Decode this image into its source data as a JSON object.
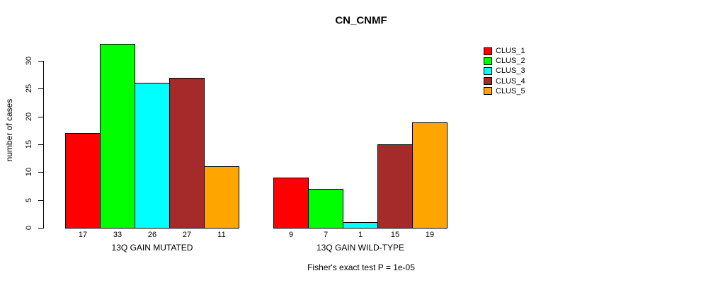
{
  "chart_data": {
    "type": "bar",
    "title": "CN_CNMF",
    "ylabel": "number of cases",
    "xlabel": "",
    "footnote": "Fisher's exact test P = 1e-05",
    "ylim": [
      0,
      33
    ],
    "yticks": [
      0,
      5,
      10,
      15,
      20,
      25,
      30
    ],
    "grid": false,
    "legend_position": "right",
    "categories": [
      "13Q GAIN MUTATED",
      "13Q GAIN WILD-TYPE"
    ],
    "series": [
      {
        "name": "CLUS_1",
        "color": "#FF0000",
        "values": [
          17,
          9
        ]
      },
      {
        "name": "CLUS_2",
        "color": "#00FF00",
        "values": [
          33,
          7
        ]
      },
      {
        "name": "CLUS_3",
        "color": "#00FFFF",
        "values": [
          26,
          1
        ]
      },
      {
        "name": "CLUS_4",
        "color": "#A52A2A",
        "values": [
          27,
          15
        ]
      },
      {
        "name": "CLUS_5",
        "color": "#FFA500",
        "values": [
          11,
          19
        ]
      }
    ],
    "bar_value_labels_shown": true
  }
}
